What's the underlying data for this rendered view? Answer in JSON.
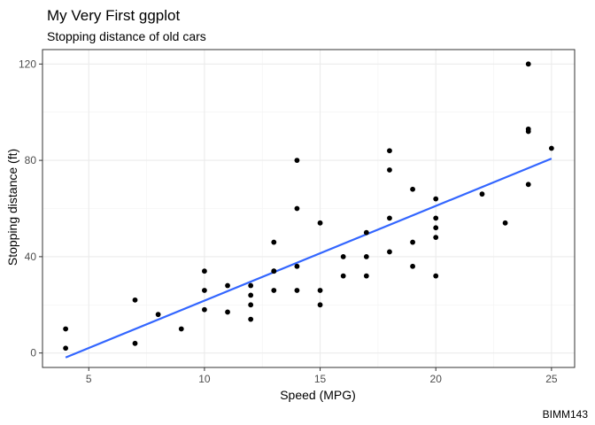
{
  "chart_data": {
    "type": "scatter",
    "title": "My Very First ggplot",
    "subtitle": "Stopping distance of old cars",
    "xlabel": "Speed (MPG)",
    "ylabel": "Stopping distance (ft)",
    "caption": "BIMM143",
    "xlim": [
      3.0,
      26.0
    ],
    "ylim": [
      -6,
      126
    ],
    "x_ticks": [
      5,
      10,
      15,
      20,
      25
    ],
    "x_tick_labels": [
      "5",
      "10",
      "15",
      "20",
      "25"
    ],
    "y_ticks": [
      0,
      40,
      80,
      120
    ],
    "y_tick_labels": [
      "0",
      "40",
      "80",
      "120"
    ],
    "grid": true,
    "theme": "bw",
    "point_color": "#000000",
    "line_color": "#3366ff",
    "points": [
      [
        4,
        2
      ],
      [
        4,
        10
      ],
      [
        7,
        4
      ],
      [
        7,
        22
      ],
      [
        8,
        16
      ],
      [
        9,
        10
      ],
      [
        10,
        18
      ],
      [
        10,
        26
      ],
      [
        10,
        34
      ],
      [
        11,
        17
      ],
      [
        11,
        28
      ],
      [
        12,
        14
      ],
      [
        12,
        20
      ],
      [
        12,
        24
      ],
      [
        12,
        28
      ],
      [
        13,
        26
      ],
      [
        13,
        34
      ],
      [
        13,
        34
      ],
      [
        13,
        46
      ],
      [
        14,
        26
      ],
      [
        14,
        36
      ],
      [
        14,
        60
      ],
      [
        14,
        80
      ],
      [
        15,
        20
      ],
      [
        15,
        26
      ],
      [
        15,
        54
      ],
      [
        16,
        32
      ],
      [
        16,
        40
      ],
      [
        17,
        32
      ],
      [
        17,
        40
      ],
      [
        17,
        50
      ],
      [
        18,
        42
      ],
      [
        18,
        56
      ],
      [
        18,
        76
      ],
      [
        18,
        84
      ],
      [
        19,
        36
      ],
      [
        19,
        46
      ],
      [
        19,
        68
      ],
      [
        20,
        32
      ],
      [
        20,
        48
      ],
      [
        20,
        52
      ],
      [
        20,
        56
      ],
      [
        20,
        64
      ],
      [
        22,
        66
      ],
      [
        23,
        54
      ],
      [
        24,
        70
      ],
      [
        24,
        92
      ],
      [
        24,
        93
      ],
      [
        24,
        120
      ],
      [
        25,
        85
      ]
    ],
    "fit_line": {
      "method": "lm",
      "x": [
        4,
        25
      ],
      "y": [
        -1.85,
        80.73
      ]
    }
  }
}
